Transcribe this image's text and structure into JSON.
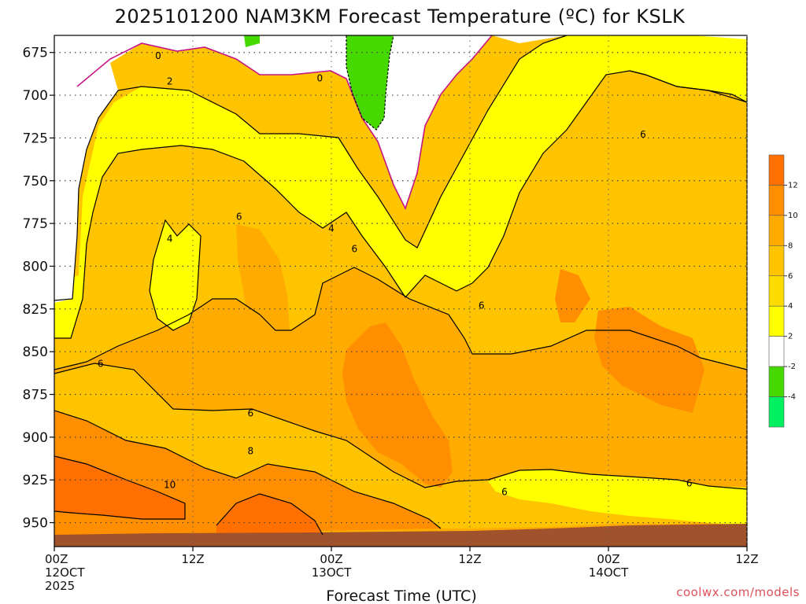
{
  "chart_data": {
    "type": "heatmap",
    "title": "2025101200 NAM3KM Forecast Temperature (ºC) for KSLK",
    "xlabel": "Forecast Time (UTC)",
    "ylabel": "",
    "y_ticks": [
      "675",
      "700",
      "725",
      "750",
      "775",
      "800",
      "825",
      "850",
      "875",
      "900",
      "925",
      "950"
    ],
    "y_values": [
      675,
      700,
      725,
      750,
      775,
      800,
      825,
      850,
      875,
      900,
      925,
      950
    ],
    "ylim": [
      964,
      665
    ],
    "x_ticks": [
      {
        "h": 0,
        "lines": [
          "00Z",
          "12OCT",
          "2025"
        ]
      },
      {
        "h": 12,
        "lines": [
          "12Z"
        ]
      },
      {
        "h": 24,
        "lines": [
          "00Z",
          "13OCT"
        ]
      },
      {
        "h": 36,
        "lines": [
          "12Z"
        ]
      },
      {
        "h": 48,
        "lines": [
          "00Z",
          "14OCT"
        ]
      },
      {
        "h": 60,
        "lines": [
          "12Z"
        ]
      }
    ],
    "xlim": [
      0,
      60
    ],
    "grid": true,
    "colorbar": {
      "levels": [
        {
          "color": "#00f060"
        },
        {
          "color": "#46d900"
        },
        {
          "color": "#ffffff"
        },
        {
          "color": "#ffff00"
        },
        {
          "color": "#ffdc00"
        },
        {
          "color": "#ffc400"
        },
        {
          "color": "#ffab00"
        },
        {
          "color": "#ff8f00"
        },
        {
          "color": "#ff7000"
        }
      ],
      "labels": [
        "12",
        "10",
        "8",
        "6",
        "4",
        "2",
        "-2",
        "-4"
      ]
    },
    "contour_labels": [
      {
        "text": "0",
        "h": 9.0,
        "p": 677
      },
      {
        "text": "0",
        "h": 23.0,
        "p": 690
      },
      {
        "text": "2",
        "h": 10.0,
        "p": 692
      },
      {
        "text": "4",
        "h": 10.0,
        "p": 784
      },
      {
        "text": "4",
        "h": 24.0,
        "p": 778
      },
      {
        "text": "6",
        "h": 16.0,
        "p": 771
      },
      {
        "text": "6",
        "h": 26.0,
        "p": 790
      },
      {
        "text": "6",
        "h": 37.0,
        "p": 823
      },
      {
        "text": "6",
        "h": 51.0,
        "p": 723
      },
      {
        "text": "6",
        "h": 4.0,
        "p": 857
      },
      {
        "text": "6",
        "h": 17.0,
        "p": 886
      },
      {
        "text": "6",
        "h": 39.0,
        "p": 932
      },
      {
        "text": "6",
        "h": 55.0,
        "p": 927
      },
      {
        "text": "8",
        "h": 17.0,
        "p": 908
      },
      {
        "text": "10",
        "h": 10.0,
        "p": 928
      }
    ],
    "terrain_color": "#a0522d",
    "credit": "coolwx.com/models"
  }
}
